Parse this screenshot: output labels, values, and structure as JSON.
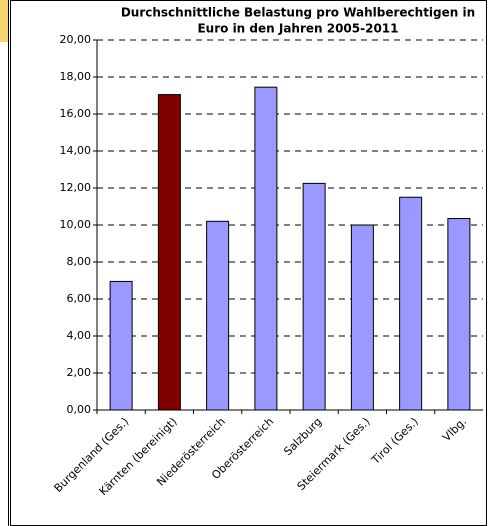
{
  "chart_data": {
    "type": "bar",
    "title": [
      "Durchschnittliche Belastung pro Wahlberechtigen in",
      "Euro in den Jahren 2005-2011"
    ],
    "categories": [
      "Burgenland (Ges.)",
      "Kärnten (bereinigt)",
      "Niederösterreich",
      "Oberösterreich",
      "Salzburg",
      "Steiermark (Ges.)",
      "Tirol (Ges.)",
      "Vlbg."
    ],
    "values": [
      6.95,
      17.05,
      10.2,
      17.45,
      12.25,
      10.0,
      11.5,
      10.35
    ],
    "colors": [
      "#9999ff",
      "#800000",
      "#9999ff",
      "#9999ff",
      "#9999ff",
      "#9999ff",
      "#9999ff",
      "#9999ff"
    ],
    "ylim": [
      0,
      20
    ],
    "yticks": [
      {
        "value": 0,
        "label": "0,00"
      },
      {
        "value": 2,
        "label": "2,00"
      },
      {
        "value": 4,
        "label": "4,00"
      },
      {
        "value": 6,
        "label": "6,00"
      },
      {
        "value": 8,
        "label": "8,00"
      },
      {
        "value": 10,
        "label": "10,00"
      },
      {
        "value": 12,
        "label": "12,00"
      },
      {
        "value": 14,
        "label": "14,00"
      },
      {
        "value": 16,
        "label": "16,00"
      },
      {
        "value": 18,
        "label": "18,00"
      },
      {
        "value": 20,
        "label": "20,00"
      }
    ],
    "grid": true
  }
}
